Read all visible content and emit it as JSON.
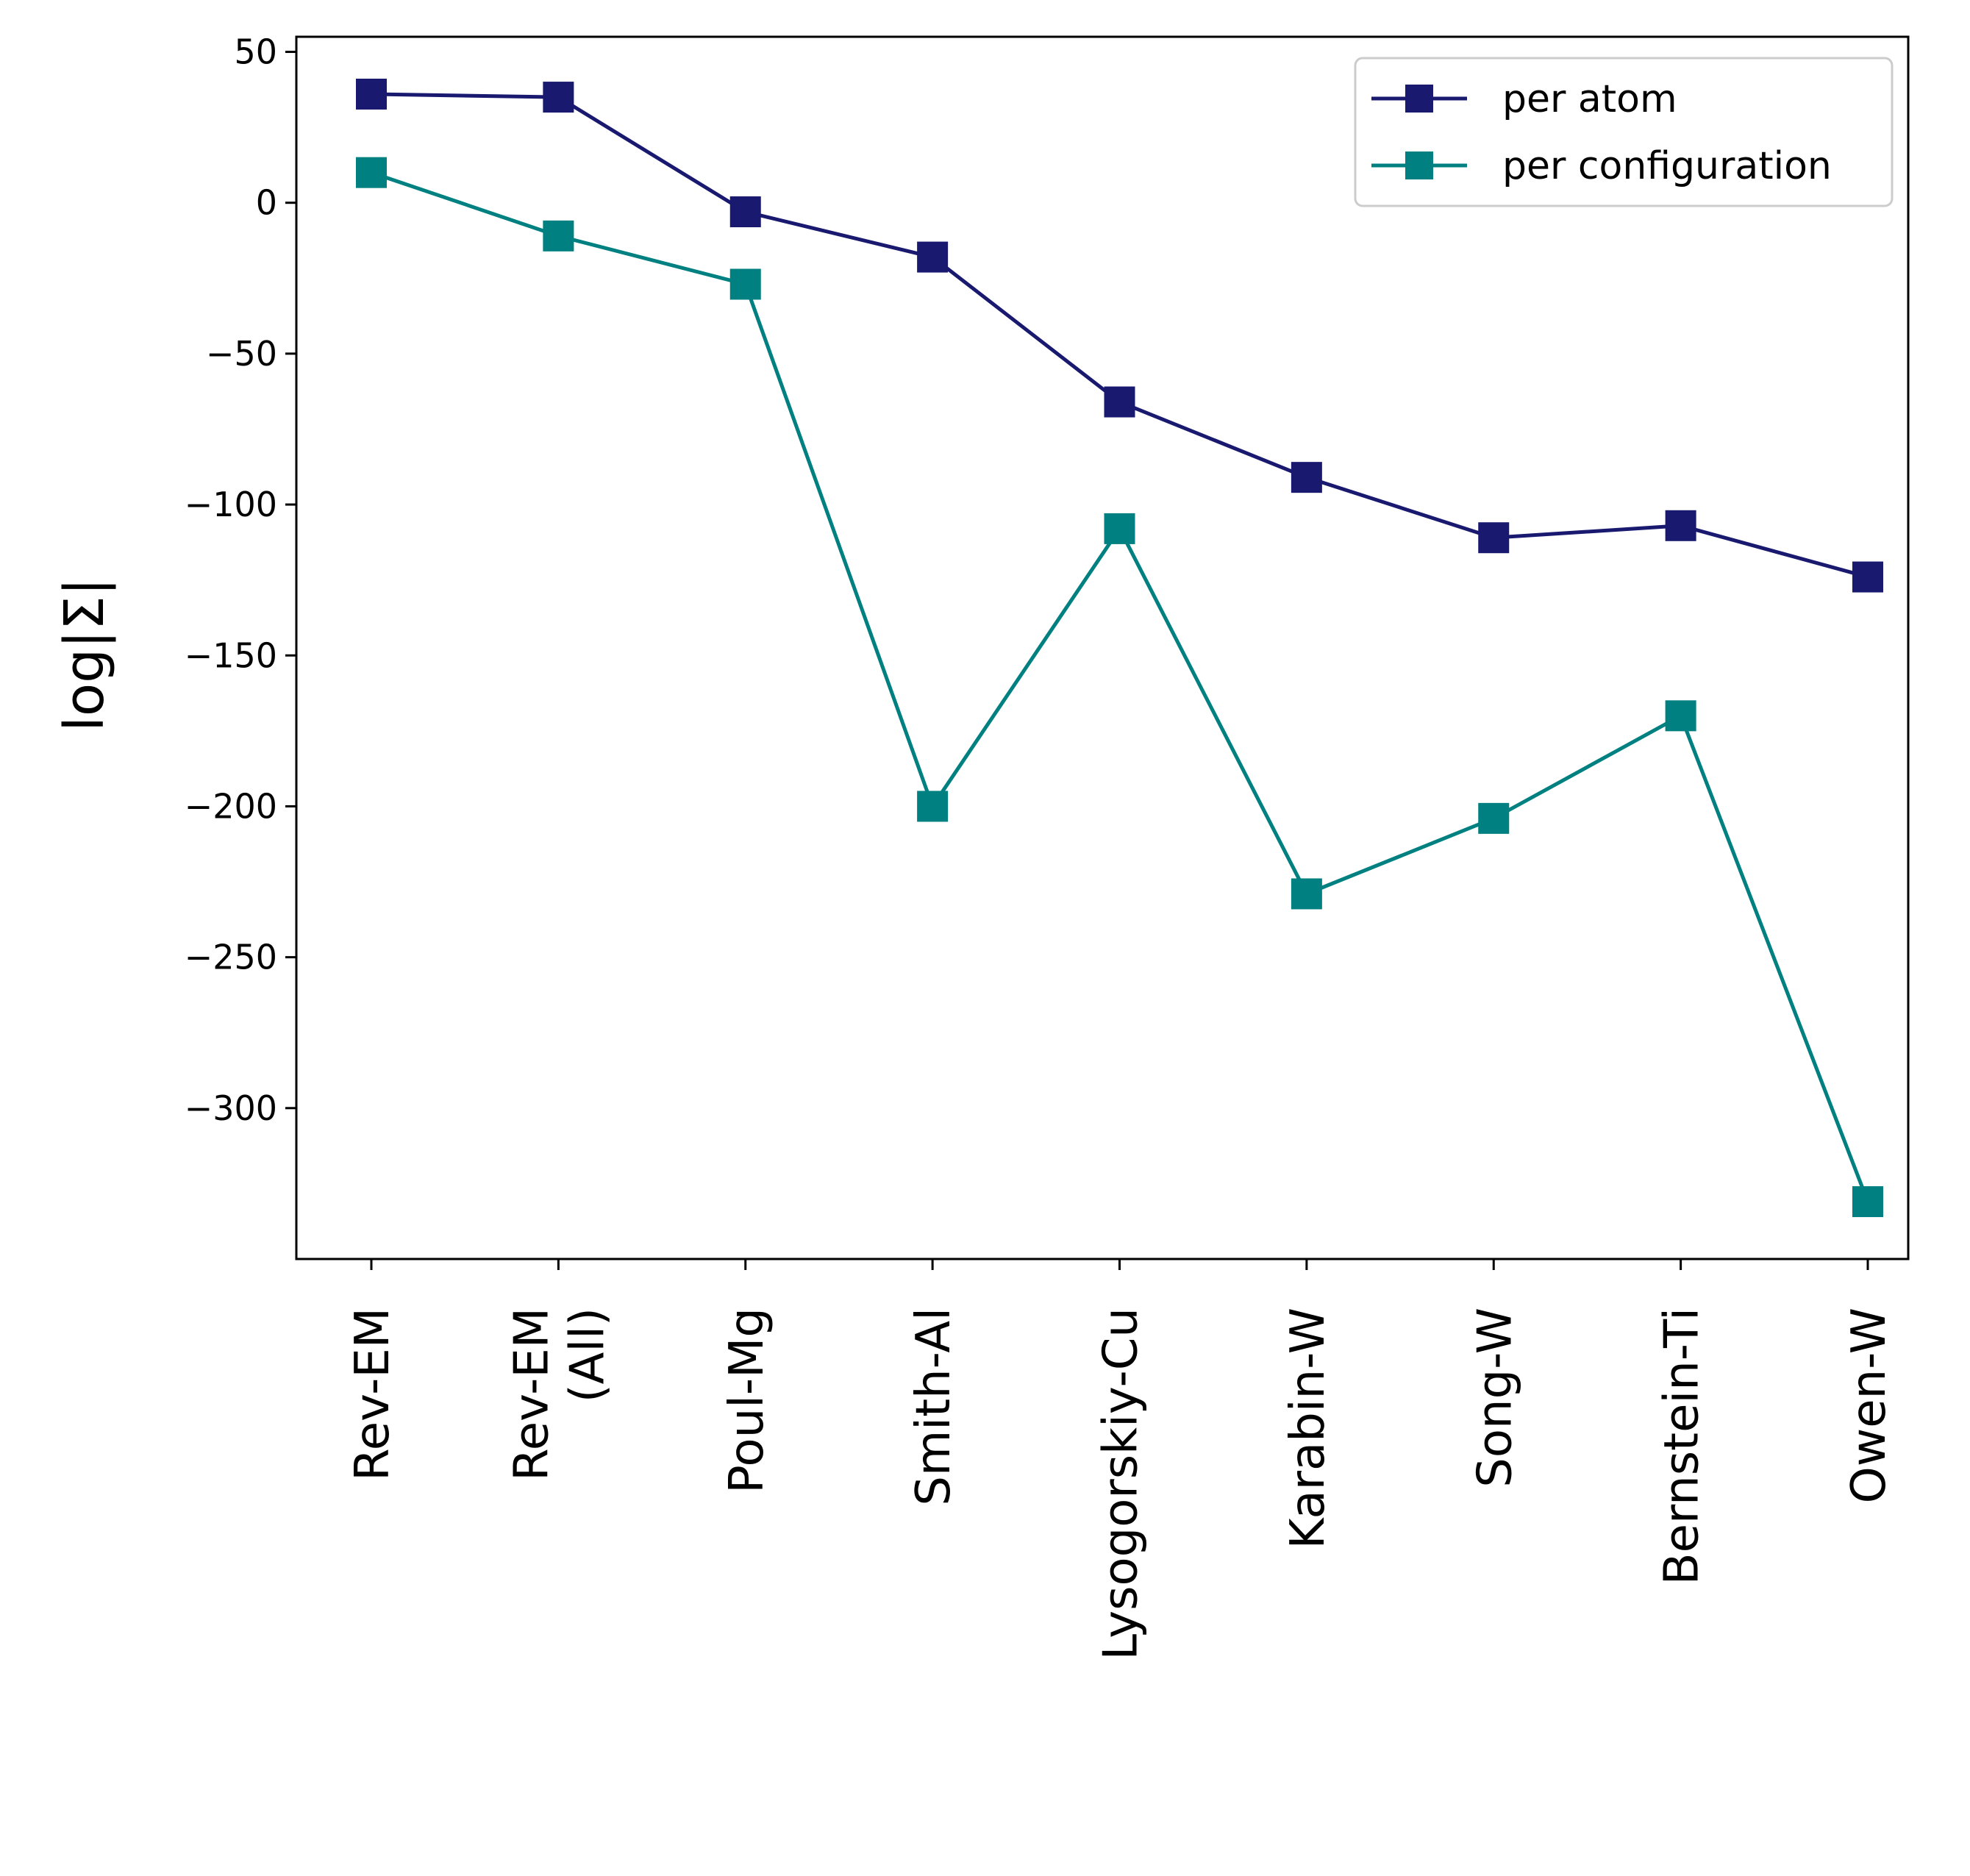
{
  "chart_data": {
    "type": "line",
    "title": "",
    "xlabel": "",
    "ylabel": "log|Σ|",
    "categories": [
      [
        "Rev-EM"
      ],
      [
        "Rev-EM",
        "(All)"
      ],
      [
        "Poul-Mg"
      ],
      [
        "Smith-Al"
      ],
      [
        "Lysogorskiy-Cu"
      ],
      [
        "Karabin-W"
      ],
      [
        "Song-W"
      ],
      [
        "Bernstein-Ti"
      ],
      [
        "Owen-W"
      ]
    ],
    "ylim": [
      -350,
      55
    ],
    "yticks": [
      50,
      0,
      -50,
      -100,
      -150,
      -200,
      -250,
      -300
    ],
    "ytick_labels": [
      "50",
      "0",
      "−50",
      "−100",
      "−150",
      "−200",
      "−250",
      "−300"
    ],
    "grid": false,
    "legend_position": "top-right",
    "series": [
      {
        "name": "per atom",
        "color": "#191970",
        "marker": "square",
        "values": [
          36,
          35,
          -3,
          -18,
          -66,
          -91,
          -111,
          -107,
          -124
        ]
      },
      {
        "name": "per configuration",
        "color": "#008080",
        "marker": "square",
        "values": [
          10,
          -11,
          -27,
          -200,
          -108,
          -229,
          -204,
          -170,
          -331
        ]
      }
    ]
  }
}
